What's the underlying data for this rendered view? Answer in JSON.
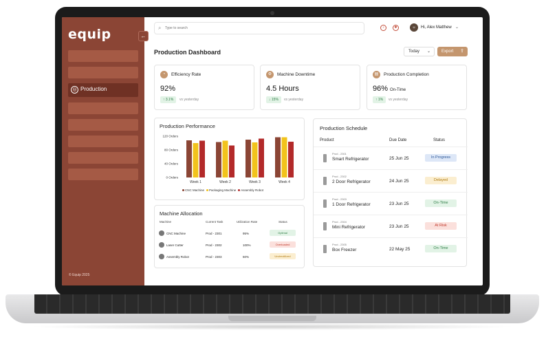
{
  "sidebar": {
    "logo": "equip",
    "active_item": "Production",
    "footer": "© Equip 2025"
  },
  "header": {
    "search_placeholder": "Type to search",
    "user_name": "Hi, Alex Matthew"
  },
  "page": {
    "title": "Production Dashboard",
    "date_filter": "Today",
    "export_label": "Export"
  },
  "kpis": [
    {
      "title": "Efficiency Rate",
      "value": "92%",
      "suffix": "",
      "delta": "↑ 3.1%",
      "comparison": "vs yesterday"
    },
    {
      "title": "Machine Downtime",
      "value": "4.5 Hours",
      "suffix": "",
      "delta": "↓ 15%",
      "comparison": "vs yesterday"
    },
    {
      "title": "Production Completion",
      "value": "96%",
      "suffix": "On-Time",
      "delta": "↑ 1%",
      "comparison": "vs yesterday"
    }
  ],
  "chart_card": {
    "title": "Production Performance"
  },
  "chart_data": {
    "type": "bar",
    "categories": [
      "Week 1",
      "Week 2",
      "Week 3",
      "Week 4"
    ],
    "series": [
      {
        "name": "CNC Machine",
        "color": "#8b4535",
        "values": [
          108,
          103,
          110,
          117
        ]
      },
      {
        "name": "Packaging Machine",
        "color": "#f2c31c",
        "values": [
          100,
          107,
          102,
          117
        ]
      },
      {
        "name": "Assembly Robot",
        "color": "#b32a2a",
        "values": [
          107,
          93,
          113,
          104
        ]
      }
    ],
    "y_ticks": [
      "0 Orders",
      "40 Orders",
      "80 Orders",
      "120 Orders"
    ],
    "ylim": [
      0,
      120
    ],
    "legend_position": "bottom"
  },
  "allocation": {
    "title": "Machine Allocation",
    "headers": [
      "Machine",
      "Current Task",
      "Utilization Rate",
      "Status"
    ],
    "rows": [
      {
        "machine": "CNC Machine",
        "task": "Prod - 2301",
        "util": "95%",
        "status": "Optimal",
        "bg": "#e2f3e6",
        "fg": "#2e7d46"
      },
      {
        "machine": "Laser Cutter",
        "task": "Prod - 2302",
        "util": "100%",
        "status": "Overloaded",
        "bg": "#fbe0dc",
        "fg": "#c0392b"
      },
      {
        "machine": "Assembly Robot",
        "task": "Prod - 2303",
        "util": "60%",
        "status": "Underutilized",
        "bg": "#fbeed0",
        "fg": "#b07b12"
      }
    ]
  },
  "schedule": {
    "title": "Production Schedule",
    "headers": [
      "Product",
      "Due Date",
      "Status"
    ],
    "rows": [
      {
        "id": "Prod - 2301",
        "name": "Smart Refrigerator",
        "due": "25 Jun 25",
        "status": "In Progress",
        "bg": "#dde7f7",
        "fg": "#2b5797"
      },
      {
        "id": "Prod - 2302",
        "name": "2 Door Refrigerator",
        "due": "24 Jun 25",
        "status": "Delayed",
        "bg": "#fbeed0",
        "fg": "#b07b12"
      },
      {
        "id": "Prod - 2303",
        "name": "1 Door Refrigerator",
        "due": "23 Jun 25",
        "status": "On-Time",
        "bg": "#e2f3e6",
        "fg": "#2e7d46"
      },
      {
        "id": "Prod - 2304",
        "name": "Mini Refrigerator",
        "due": "23 Jun 25",
        "status": "At Risk",
        "bg": "#fbe0dc",
        "fg": "#c0392b"
      },
      {
        "id": "Prod - 2305",
        "name": "Box Freezer",
        "due": "22 May 25",
        "status": "On-Time",
        "bg": "#e2f3e6",
        "fg": "#2e7d46"
      }
    ]
  }
}
